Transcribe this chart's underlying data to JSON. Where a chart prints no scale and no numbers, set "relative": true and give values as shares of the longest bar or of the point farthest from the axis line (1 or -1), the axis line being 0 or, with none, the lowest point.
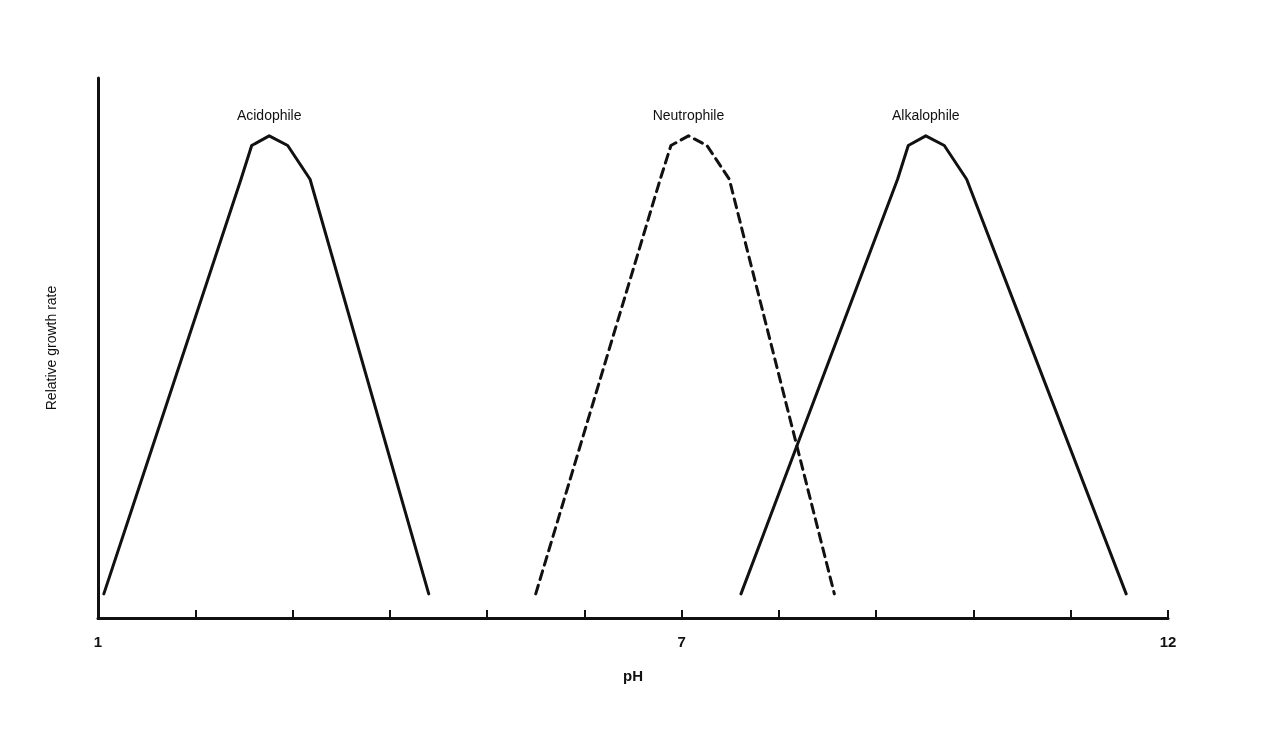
{
  "chart_data": {
    "type": "line",
    "xlabel": "pH",
    "ylabel": "Relative growth rate",
    "relative": true,
    "xlim": [
      1,
      12
    ],
    "xticks": [
      1,
      {
        "value": 2,
        "label": null
      },
      {
        "value": 3,
        "label": null
      },
      {
        "value": 4,
        "label": null
      },
      {
        "value": 5,
        "label": null
      },
      {
        "value": 6,
        "label": null
      },
      7,
      {
        "value": 8,
        "label": null
      },
      {
        "value": 9,
        "label": null
      },
      {
        "value": 10,
        "label": null
      },
      {
        "value": 11,
        "label": null
      },
      12
    ],
    "tick_labels": "x",
    "series": [
      {
        "name": "Acidophile",
        "color": "#111111",
        "line_style": "solid",
        "x": [
          1.06,
          2.47,
          2.58,
          2.76,
          2.95,
          3.18,
          4.4
        ],
        "values": [
          0.05,
          0.91,
          0.98,
          1,
          0.98,
          0.91,
          0.05
        ]
      },
      {
        "name": "Neutrophile",
        "color": "#111111",
        "line_style": "dashed",
        "x": [
          5.5,
          6.78,
          6.89,
          7.07,
          7.26,
          7.49,
          8.57
        ],
        "values": [
          0.05,
          0.91,
          0.98,
          1,
          0.98,
          0.91,
          0.05
        ]
      },
      {
        "name": "Alkalophile",
        "color": "#111111",
        "line_style": "solid",
        "x": [
          7.61,
          9.22,
          9.33,
          9.51,
          9.7,
          9.93,
          11.57
        ],
        "values": [
          0.05,
          0.91,
          0.98,
          1,
          0.98,
          0.91,
          0.05
        ]
      }
    ]
  }
}
